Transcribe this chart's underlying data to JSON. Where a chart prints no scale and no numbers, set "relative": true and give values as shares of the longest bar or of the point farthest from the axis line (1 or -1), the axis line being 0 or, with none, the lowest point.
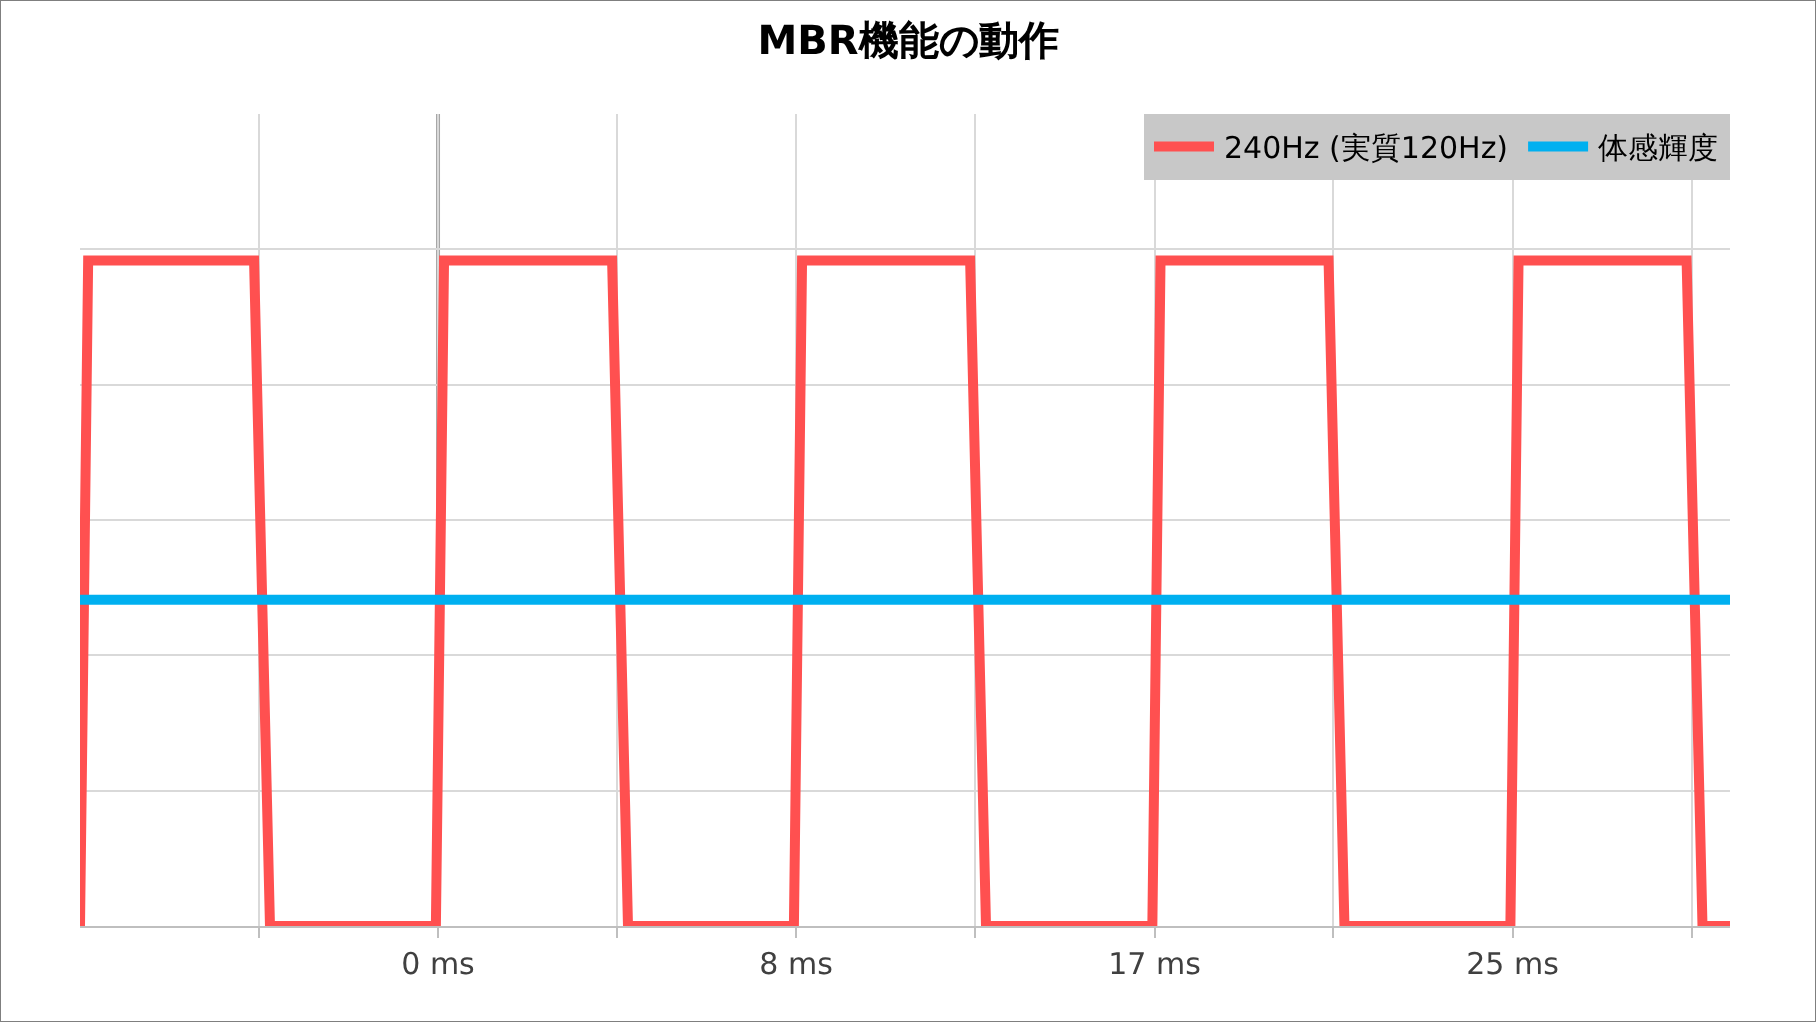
{
  "chart_data": {
    "type": "line",
    "title": "MBR機能の動作",
    "relative": true,
    "xlim": [
      -8.33,
      30.06
    ],
    "xticks": [
      {
        "value": -4.17,
        "label": null
      },
      {
        "value": 0,
        "label": "0 ms"
      },
      {
        "value": 4.17,
        "label": null
      },
      {
        "value": 8.33,
        "label": "8 ms"
      },
      {
        "value": 12.5,
        "label": null
      },
      {
        "value": 16.67,
        "label": "17 ms"
      },
      {
        "value": 20.83,
        "label": null
      },
      {
        "value": 25,
        "label": "25 ms"
      },
      {
        "value": 29.17,
        "label": null
      }
    ],
    "series": [
      {
        "name": "240Hz (実質120Hz)",
        "color": "#ff5050",
        "x": [
          -8.33,
          -8.14,
          -4.28,
          -3.91,
          -0.05,
          0.14,
          4.05,
          4.42,
          8.28,
          8.47,
          12.38,
          12.75,
          16.62,
          16.81,
          20.72,
          21.09,
          24.95,
          25.14,
          29.05,
          29.42,
          30.06
        ],
        "values": [
          0,
          1,
          1,
          0,
          0,
          1,
          1,
          0,
          0,
          1,
          1,
          0,
          0,
          1,
          1,
          0,
          0,
          1,
          1,
          0,
          0
        ]
      },
      {
        "name": "体感輝度",
        "color": "#00b0f0",
        "x": [
          -8.33,
          30.06
        ],
        "values": [
          0.49,
          0.49
        ]
      }
    ],
    "ref_lines": [
      {
        "axis": "x",
        "value": 0,
        "color": "#a6a6a6"
      }
    ],
    "grid": true,
    "legend": "top right",
    "marker": "none",
    "line_style": "solid"
  }
}
